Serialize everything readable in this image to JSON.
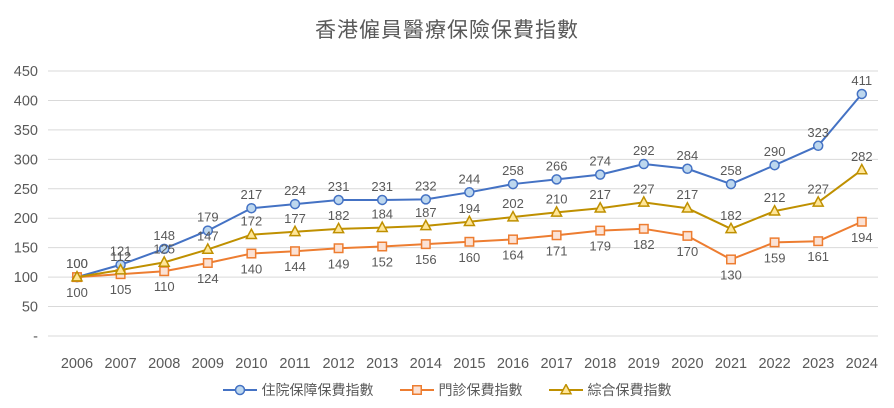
{
  "chart_data": {
    "type": "line",
    "title": "香港僱員醫療保險保費指數",
    "categories": [
      "2006",
      "2007",
      "2008",
      "2009",
      "2010",
      "2011",
      "2012",
      "2013",
      "2014",
      "2015",
      "2016",
      "2017",
      "2018",
      "2019",
      "2020",
      "2021",
      "2022",
      "2023",
      "2024"
    ],
    "series": [
      {
        "name": "住院保障保費指數",
        "color": "#4472C4",
        "marker": "circle",
        "marker_fill": "#BDD7EE",
        "label_position": "above",
        "values": [
          100,
          121,
          148,
          179,
          217,
          224,
          231,
          231,
          232,
          244,
          258,
          266,
          274,
          292,
          284,
          258,
          290,
          323,
          411
        ]
      },
      {
        "name": "門診保費指數",
        "color": "#ED7D31",
        "marker": "square",
        "marker_fill": "#FBE2D5",
        "label_position": "below",
        "values": [
          100,
          105,
          110,
          124,
          140,
          144,
          149,
          152,
          156,
          160,
          164,
          171,
          179,
          182,
          170,
          130,
          159,
          161,
          194
        ]
      },
      {
        "name": "綜合保費指數",
        "color": "#BF9000",
        "marker": "triangle",
        "marker_fill": "#FFE699",
        "label_position": "above",
        "values": [
          100,
          112,
          125,
          147,
          172,
          177,
          182,
          184,
          187,
          194,
          202,
          210,
          217,
          227,
          217,
          182,
          212,
          227,
          282
        ]
      }
    ],
    "y_axis": {
      "min": 0,
      "max": 450,
      "step": 50,
      "tick_labels": [
        "-",
        "50",
        "100",
        "150",
        "200",
        "250",
        "300",
        "350",
        "400",
        "450"
      ]
    },
    "xlabel": "",
    "ylabel": "",
    "grid": true,
    "legend_position": "bottom",
    "colors": {
      "grid": "#D9D9D9",
      "axis_text": "#595959",
      "data_label": "#595959",
      "title_text": "#595959",
      "background": "#FFFFFF"
    }
  }
}
